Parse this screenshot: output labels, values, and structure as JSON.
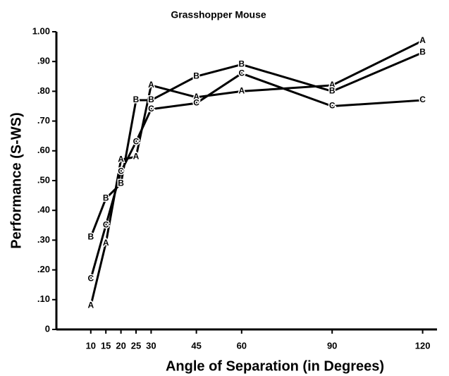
{
  "chart_data": {
    "type": "line",
    "title": "Grasshopper Mouse",
    "xlabel": "Angle of Separation (in Degrees)",
    "ylabel": "Performance (S-WS)",
    "x": [
      10,
      15,
      20,
      25,
      30,
      45,
      60,
      90,
      120
    ],
    "series": [
      {
        "name": "A",
        "color": "#000000",
        "values": [
          0.08,
          0.29,
          0.57,
          0.58,
          0.82,
          0.78,
          0.8,
          0.82,
          0.97
        ]
      },
      {
        "name": "B",
        "color": "#000000",
        "values": [
          0.31,
          0.44,
          0.49,
          0.77,
          0.77,
          0.85,
          0.89,
          0.8,
          0.93
        ]
      },
      {
        "name": "C",
        "color": "#000000",
        "values": [
          0.17,
          0.35,
          0.53,
          0.63,
          0.74,
          0.76,
          0.86,
          0.75,
          0.77
        ]
      }
    ],
    "xlim": [
      0,
      125
    ],
    "xticks": [
      10,
      15,
      20,
      25,
      30,
      45,
      60,
      90,
      120
    ],
    "ylim": [
      0,
      1
    ],
    "yticks": [
      0,
      {
        "value": 0.1,
        "label": ".10"
      },
      {
        "value": 0.2,
        "label": ".20"
      },
      {
        "value": 0.3,
        "label": ".30"
      },
      {
        "value": 0.4,
        "label": ".40"
      },
      {
        "value": 0.5,
        "label": ".50"
      },
      {
        "value": 0.6,
        "label": ".60"
      },
      {
        "value": 0.7,
        "label": ".70"
      },
      {
        "value": 0.8,
        "label": ".80"
      },
      {
        "value": 0.9,
        "label": ".90"
      },
      {
        "value": 1,
        "label": "1.00"
      }
    ],
    "grid": false
  }
}
